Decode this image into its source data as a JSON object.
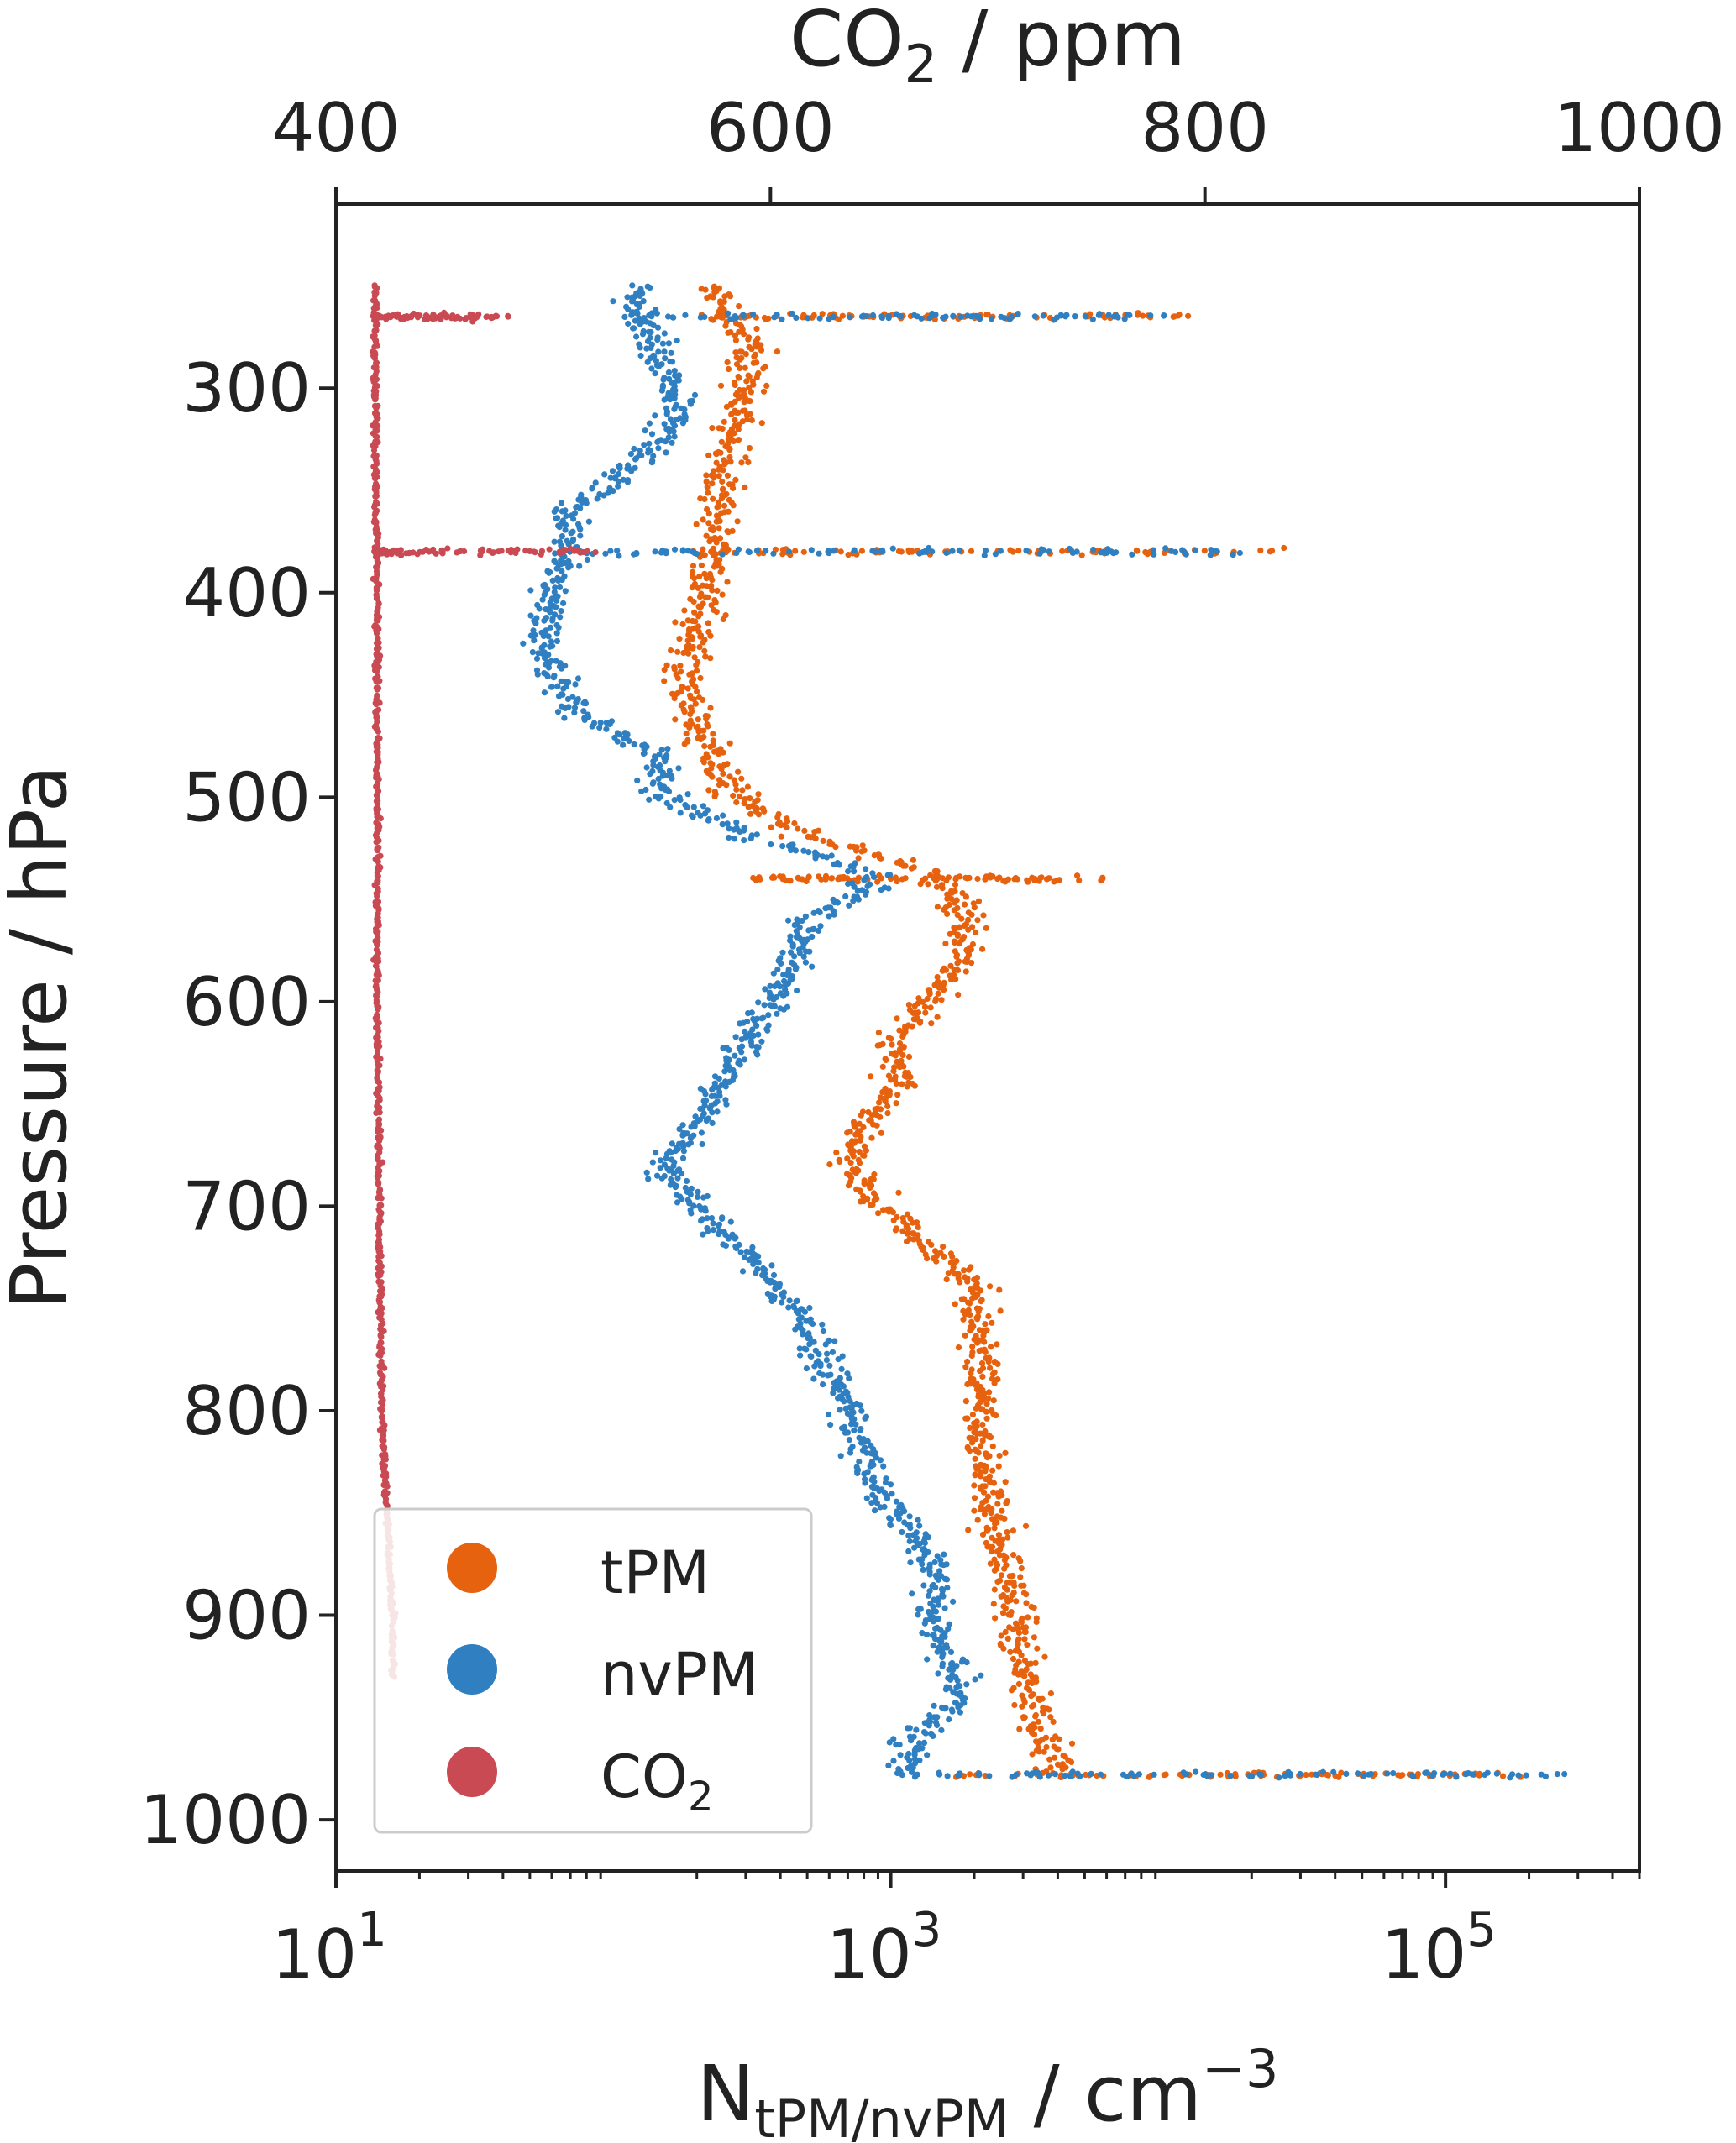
{
  "chart_data": {
    "type": "scatter",
    "title": "",
    "top_axis": {
      "label_main": "CO",
      "label_sub": "2",
      "label_rest": " / ppm",
      "range": [
        400,
        1000
      ],
      "ticks": [
        400,
        600,
        800,
        1000
      ],
      "tick_labels": [
        "400",
        "600",
        "800",
        "1000"
      ]
    },
    "bottom_axis": {
      "label_main": "N",
      "label_sub": "tPM/nvPM",
      "label_rest": " / cm",
      "label_sup": "−3",
      "scale": "log",
      "range": [
        10,
        500000
      ],
      "ticks": [
        10,
        1000,
        100000
      ],
      "tick_bases": [
        "10",
        "10",
        "10"
      ],
      "tick_exponents": [
        "1",
        "3",
        "5"
      ]
    },
    "y_axis": {
      "label": "Pressure / hPa",
      "inverted": true,
      "range": [
        1025,
        210
      ],
      "ticks": [
        300,
        400,
        500,
        600,
        700,
        800,
        900,
        1000
      ],
      "tick_labels": [
        "300",
        "400",
        "500",
        "600",
        "700",
        "800",
        "900",
        "1000"
      ]
    },
    "legend": {
      "position": "lower-left",
      "entries": [
        {
          "name": "tPM",
          "color": "#e6620f"
        },
        {
          "name": "nvPM",
          "color": "#2f7fc1"
        },
        {
          "name": "CO",
          "name_sub": "2",
          "color": "#c94a53"
        }
      ]
    },
    "series": [
      {
        "name": "tPM",
        "axis": "bottom",
        "color": "#e6620f",
        "profile": [
          [
            250,
            220
          ],
          [
            265,
            260
          ],
          [
            280,
            320
          ],
          [
            300,
            300
          ],
          [
            320,
            270
          ],
          [
            340,
            250
          ],
          [
            360,
            230
          ],
          [
            380,
            230
          ],
          [
            400,
            220
          ],
          [
            420,
            200
          ],
          [
            440,
            180
          ],
          [
            460,
            200
          ],
          [
            480,
            220
          ],
          [
            500,
            280
          ],
          [
            520,
            500
          ],
          [
            540,
            1500
          ],
          [
            560,
            1900
          ],
          [
            580,
            1800
          ],
          [
            600,
            1300
          ],
          [
            620,
            1000
          ],
          [
            640,
            1100
          ],
          [
            660,
            800
          ],
          [
            680,
            700
          ],
          [
            700,
            900
          ],
          [
            720,
            1400
          ],
          [
            740,
            2000
          ],
          [
            760,
            2000
          ],
          [
            780,
            2200
          ],
          [
            800,
            2100
          ],
          [
            820,
            2100
          ],
          [
            840,
            2200
          ],
          [
            860,
            2400
          ],
          [
            880,
            2600
          ],
          [
            900,
            2800
          ],
          [
            920,
            3000
          ],
          [
            940,
            3200
          ],
          [
            960,
            3500
          ],
          [
            978,
            4000
          ]
        ],
        "spikes": [
          {
            "p": 265,
            "min": 200,
            "max": 12000
          },
          {
            "p": 380,
            "min": 180,
            "max": 30000
          },
          {
            "p": 540,
            "min": 300,
            "max": 6000
          },
          {
            "p": 978,
            "min": 1500,
            "max": 200000
          }
        ]
      },
      {
        "name": "nvPM",
        "axis": "bottom",
        "color": "#2f7fc1",
        "profile": [
          [
            250,
            120
          ],
          [
            265,
            120
          ],
          [
            280,
            140
          ],
          [
            300,
            170
          ],
          [
            320,
            160
          ],
          [
            340,
            110
          ],
          [
            360,
            70
          ],
          [
            380,
            70
          ],
          [
            400,
            60
          ],
          [
            420,
            55
          ],
          [
            440,
            60
          ],
          [
            460,
            75
          ],
          [
            480,
            140
          ],
          [
            500,
            150
          ],
          [
            520,
            300
          ],
          [
            540,
            900
          ],
          [
            560,
            500
          ],
          [
            580,
            450
          ],
          [
            600,
            380
          ],
          [
            620,
            300
          ],
          [
            640,
            250
          ],
          [
            660,
            200
          ],
          [
            680,
            150
          ],
          [
            700,
            200
          ],
          [
            720,
            280
          ],
          [
            740,
            380
          ],
          [
            760,
            500
          ],
          [
            780,
            600
          ],
          [
            800,
            700
          ],
          [
            820,
            800
          ],
          [
            840,
            900
          ],
          [
            860,
            1200
          ],
          [
            880,
            1500
          ],
          [
            900,
            1400
          ],
          [
            920,
            1600
          ],
          [
            940,
            1800
          ],
          [
            960,
            1200
          ],
          [
            978,
            1100
          ]
        ],
        "spikes": [
          {
            "p": 265,
            "min": 100,
            "max": 10000
          },
          {
            "p": 380,
            "min": 60,
            "max": 20000
          },
          {
            "p": 978,
            "min": 1100,
            "max": 300000
          }
        ]
      },
      {
        "name": "CO2",
        "axis": "top",
        "color": "#c94a53",
        "profile": [
          [
            250,
            418
          ],
          [
            300,
            418
          ],
          [
            400,
            419
          ],
          [
            500,
            419
          ],
          [
            600,
            419
          ],
          [
            700,
            420
          ],
          [
            800,
            421
          ],
          [
            900,
            426
          ],
          [
            930,
            426
          ]
        ],
        "spikes": [
          {
            "p": 265,
            "min": 418,
            "max": 480
          },
          {
            "p": 380,
            "min": 418,
            "max": 520
          }
        ]
      }
    ]
  }
}
